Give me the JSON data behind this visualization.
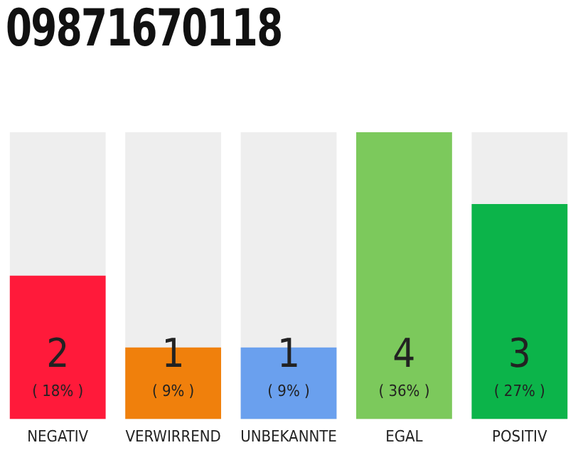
{
  "chart_data": {
    "type": "bar",
    "title": "09871670118",
    "categories": [
      "NEGATIV",
      "VERWIRREND",
      "UNBEKANNTE",
      "EGAL",
      "POSITIV"
    ],
    "values": [
      2,
      1,
      1,
      4,
      3
    ],
    "colors": [
      "#ff1a3a",
      "#f0800c",
      "#6aa0ee",
      "#7cc95c",
      "#0cb44a"
    ],
    "data_labels": true,
    "annotations": [
      "( 18% )",
      "( 9% )",
      "( 9% )",
      "( 36% )",
      "( 27% )"
    ],
    "grid": false,
    "legend": false
  }
}
